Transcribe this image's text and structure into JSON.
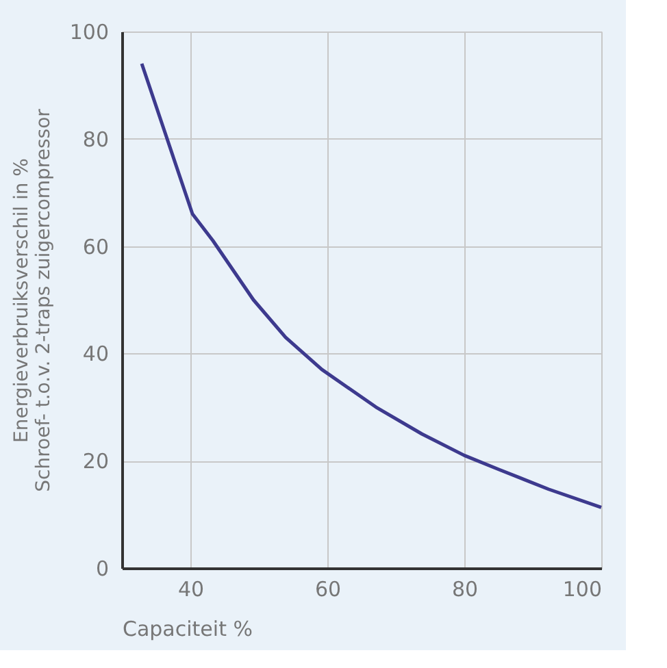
{
  "chart_data": {
    "type": "line",
    "xlabel": "Capaciteit %",
    "ylabel": "Energieverbruiksverschil in %\nSchroef- t.o.v. 2-traps zuigercompressor",
    "x": [
      32.9,
      36.6,
      40.3,
      43.3,
      49.2,
      53.9,
      59.2,
      67.1,
      73.8,
      80,
      85,
      92.3,
      100
    ],
    "series": [
      {
        "color": "#3d3a8e",
        "values": [
          94,
          80,
          66,
          61,
          50,
          43,
          37,
          30,
          25,
          21,
          18.4,
          14.7,
          11.3
        ]
      }
    ],
    "xlim": [
      30,
      100
    ],
    "xticks": [
      40,
      60,
      80,
      100
    ],
    "ylim": [
      0,
      100
    ],
    "yticks": [
      0,
      20,
      40,
      60,
      80,
      100
    ],
    "grid": true,
    "legend": false,
    "marker": "none",
    "line_style": "solid"
  }
}
